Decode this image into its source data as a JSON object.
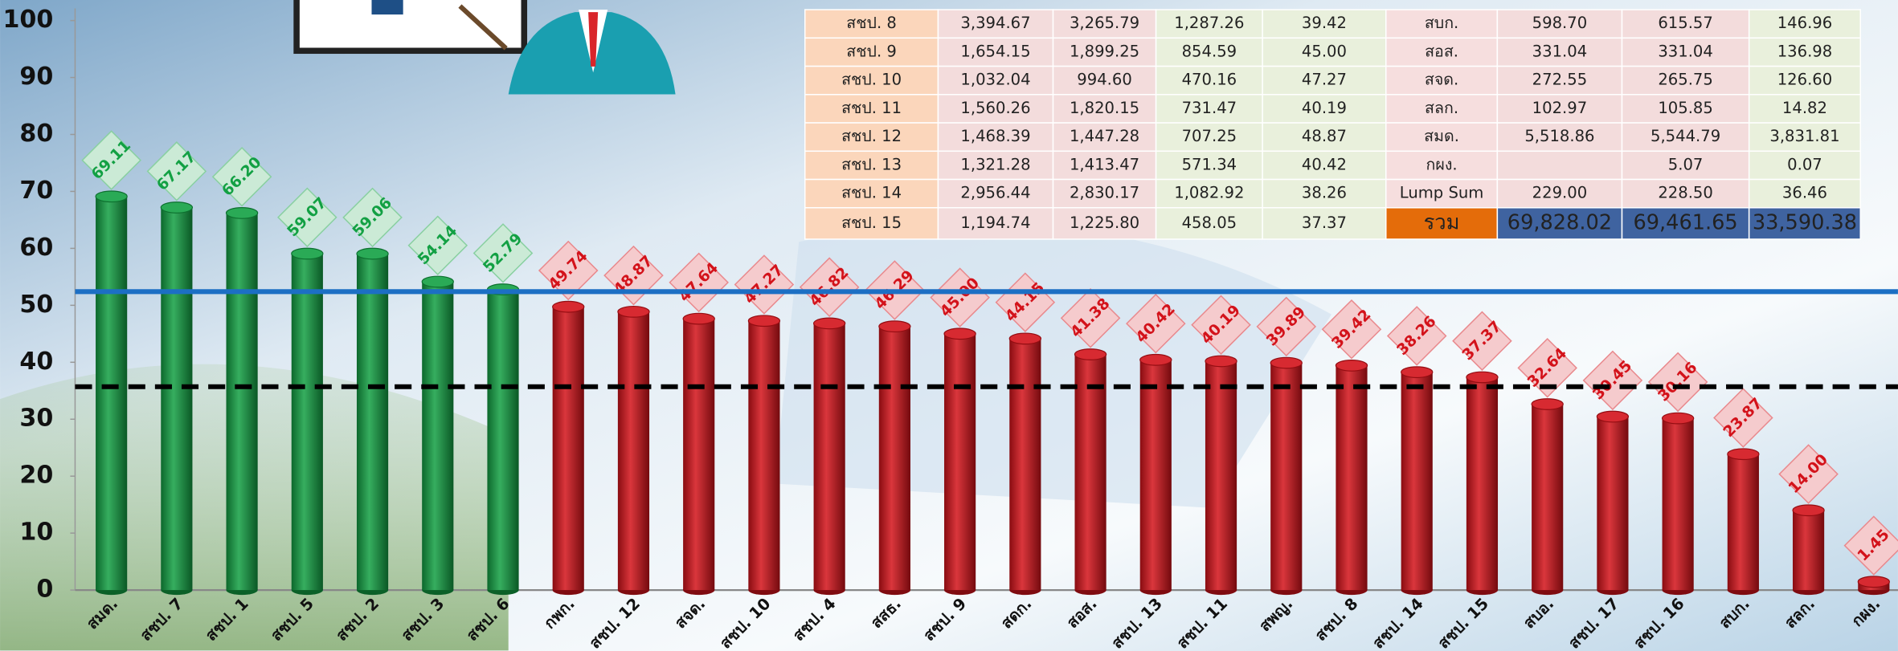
{
  "chart_data": {
    "type": "bar",
    "categories": [
      "สมด.",
      "สชป. 7",
      "สชป. 1",
      "สชป. 5",
      "สชป. 2",
      "สชป. 3",
      "สชป. 6",
      "กพก.",
      "สชป. 12",
      "สจด.",
      "สชป. 10",
      "สชป. 4",
      "สสธ.",
      "สชป. 9",
      "สดก.",
      "สอส.",
      "สชป. 13",
      "สชป. 11",
      "สพญ.",
      "สชป. 8",
      "สชป. 14",
      "สชป. 15",
      "สบอ.",
      "สชป. 17",
      "สชป. 16",
      "สบก.",
      "สลก.",
      "กผง."
    ],
    "values": [
      69.11,
      67.17,
      66.2,
      59.07,
      59.06,
      54.14,
      52.79,
      49.74,
      48.87,
      47.64,
      47.27,
      46.82,
      46.29,
      45.0,
      44.15,
      41.38,
      40.42,
      40.19,
      39.89,
      39.42,
      38.26,
      37.37,
      32.64,
      30.45,
      30.16,
      23.87,
      14.0,
      1.45
    ],
    "value_labels": [
      "69.11",
      "67.17",
      "66.20",
      "59.07",
      "59.06",
      "54.14",
      "52.79",
      "49.74",
      "48.87",
      "47.64",
      "47.27",
      "46.82",
      "46.29",
      "45.00",
      "44.15",
      "41.38",
      "40.42",
      "40.19",
      "39.89",
      "39.42",
      "38.26",
      "37.37",
      "32.64",
      "30.45",
      "30.16",
      "23.87",
      "14.00",
      "1.45"
    ],
    "colors": [
      "#12a043",
      "#12a043",
      "#12a043",
      "#12a043",
      "#12a043",
      "#12a043",
      "#12a043",
      "#d3121a",
      "#d3121a",
      "#d3121a",
      "#d3121a",
      "#d3121a",
      "#d3121a",
      "#d3121a",
      "#d3121a",
      "#d3121a",
      "#d3121a",
      "#d3121a",
      "#d3121a",
      "#d3121a",
      "#d3121a",
      "#d3121a",
      "#d3121a",
      "#d3121a",
      "#d3121a",
      "#d3121a",
      "#d3121a",
      "#d3121a"
    ],
    "ylim": [
      0,
      100
    ],
    "yticks": [
      0,
      10,
      20,
      30,
      40,
      50,
      60,
      70,
      80,
      90,
      100
    ],
    "grid": false,
    "reference_lines": [
      {
        "value": 52.4,
        "color": "#1c6fc4",
        "style": "solid"
      },
      {
        "value": 35.7,
        "color": "#000000",
        "style": "dashed"
      }
    ]
  },
  "table": {
    "rows": [
      [
        "สชป. 8",
        "3,394.67",
        "3,265.79",
        "1,287.26",
        "39.42",
        "สบก.",
        "598.70",
        "615.57",
        "146.96"
      ],
      [
        "สชป. 9",
        "1,654.15",
        "1,899.25",
        "854.59",
        "45.00",
        "สอส.",
        "331.04",
        "331.04",
        "136.98"
      ],
      [
        "สชป. 10",
        "1,032.04",
        "994.60",
        "470.16",
        "47.27",
        "สจด.",
        "272.55",
        "265.75",
        "126.60"
      ],
      [
        "สชป. 11",
        "1,560.26",
        "1,820.15",
        "731.47",
        "40.19",
        "สลก.",
        "102.97",
        "105.85",
        "14.82"
      ],
      [
        "สชป. 12",
        "1,468.39",
        "1,447.28",
        "707.25",
        "48.87",
        "สมด.",
        "5,518.86",
        "5,544.79",
        "3,831.81"
      ],
      [
        "สชป. 13",
        "1,321.28",
        "1,413.47",
        "571.34",
        "40.42",
        "กผง.",
        null,
        "5.07",
        "0.07"
      ],
      [
        "สชป. 14",
        "2,956.44",
        "2,830.17",
        "1,082.92",
        "38.26",
        "Lump Sum",
        "229.00",
        "228.50",
        "36.46"
      ],
      [
        "สชป. 15",
        "1,194.74",
        "1,225.80",
        "458.05",
        "37.37",
        "รวม",
        "69,828.02",
        "69,461.65",
        "33,590.38"
      ]
    ]
  }
}
